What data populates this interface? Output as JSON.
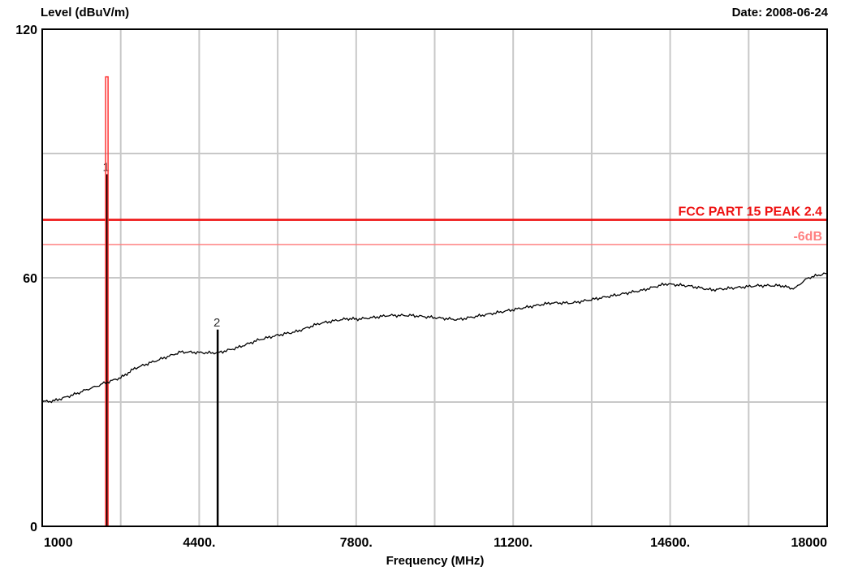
{
  "chart_data": {
    "type": "line",
    "title": "",
    "ylabel": "Level (dBuV/m)",
    "xlabel": "Frequency (MHz)",
    "date_text": "Date: 2008-06-24",
    "xlim": [
      1000,
      18000
    ],
    "ylim": [
      0,
      120
    ],
    "x_tick_labels": [
      {
        "value": 1000,
        "label": "1000"
      },
      {
        "value": 4400,
        "label": "4400."
      },
      {
        "value": 7800,
        "label": "7800."
      },
      {
        "value": 11200,
        "label": "11200."
      },
      {
        "value": 14600,
        "label": "14600."
      },
      {
        "value": 18000,
        "label": "18000"
      }
    ],
    "y_tick_labels": [
      {
        "value": 0,
        "label": "0"
      },
      {
        "value": 60,
        "label": "60"
      },
      {
        "value": 120,
        "label": "120"
      }
    ],
    "x_gridlines": [
      1000,
      2700,
      4400,
      6100,
      7800,
      9500,
      11200,
      12900,
      14600,
      16300,
      18000
    ],
    "y_gridlines": [
      0,
      30,
      60,
      90,
      120
    ],
    "grid": true,
    "series": [
      {
        "color": "#000000",
        "x": [
          1000,
          1300,
          1700,
          2000,
          2300,
          2700,
          3000,
          3500,
          4000,
          4400,
          4800,
          5200,
          5700,
          6100,
          6500,
          7000,
          7500,
          7800,
          8500,
          9000,
          9500,
          10000,
          10500,
          11000,
          11500,
          12000,
          12500,
          13000,
          13500,
          14000,
          14500,
          15000,
          15500,
          16000,
          16500,
          17000,
          17300,
          17600,
          18000
        ],
        "y": [
          30,
          30.5,
          32,
          33,
          34.5,
          36,
          38,
          40,
          42,
          42,
          42,
          43,
          45,
          46,
          47,
          49,
          50,
          50,
          51,
          51,
          50.5,
          50,
          51,
          52,
          53,
          54,
          54,
          55,
          56,
          57,
          58.5,
          58,
          57,
          57.5,
          58,
          58,
          57.5,
          60,
          61
        ]
      }
    ],
    "peaks": [
      {
        "label": "1",
        "x": 2400,
        "y": 85,
        "color": "#000000"
      },
      {
        "label": "2",
        "x": 4800,
        "y": 47.5,
        "color": "#000000"
      },
      {
        "label": "",
        "x": 2400,
        "y": 108.5,
        "color": "#ff3333"
      }
    ],
    "limit_lines": [
      {
        "label": "FCC PART 15 PEAK 2.4",
        "y": 74,
        "color": "#ee1111"
      },
      {
        "label": "-6dB",
        "y": 68,
        "color": "#ff8080"
      }
    ],
    "colors": {
      "trace": "#000000",
      "limit": "#ee1111",
      "limit_margin": "#ff8080",
      "grid": "#c8c8c8",
      "axis": "#000000"
    }
  }
}
